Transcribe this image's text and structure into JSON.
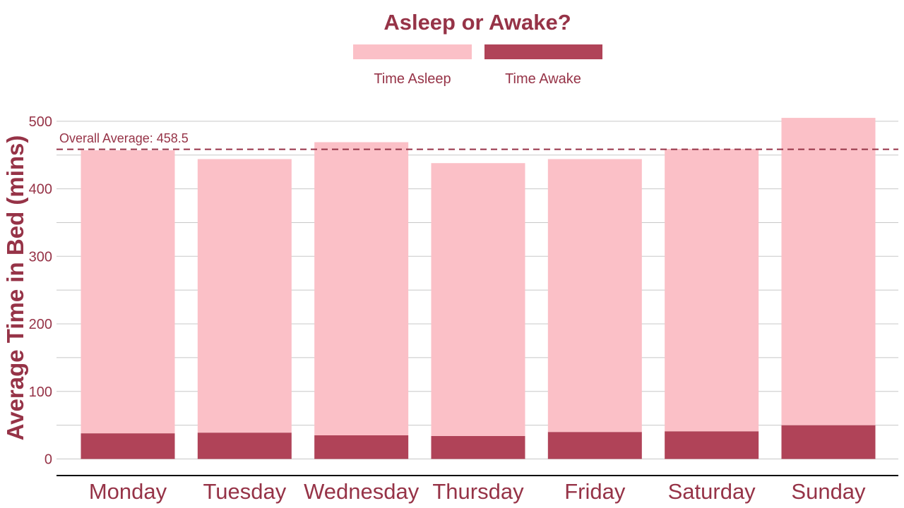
{
  "colors": {
    "asleep": "#fbc0c7",
    "awake": "#b04358",
    "text": "#963347",
    "grid": "#c8c8c8",
    "axis": "#000000",
    "average_line": "#963347"
  },
  "chart_data": {
    "type": "bar",
    "stacked": true,
    "title": "Asleep or Awake?",
    "xlabel": "",
    "ylabel": "Average Time in Bed (mins)",
    "ylim": [
      0,
      520
    ],
    "yticks": [
      0,
      100,
      200,
      300,
      400,
      500
    ],
    "ytick_labels": [
      "0",
      "100",
      "200",
      "300",
      "400",
      "500"
    ],
    "grid": true,
    "legend_position": "top-center",
    "categories": [
      "Monday",
      "Tuesday",
      "Wednesday",
      "Thursday",
      "Friday",
      "Saturday",
      "Sunday"
    ],
    "series": [
      {
        "name": "Time Awake",
        "values": [
          38,
          39,
          35,
          34,
          40,
          41,
          50
        ]
      },
      {
        "name": "Time Asleep",
        "values": [
          419,
          405,
          434,
          404,
          404,
          418,
          455
        ]
      }
    ],
    "legend_order": [
      "Time Asleep",
      "Time Awake"
    ],
    "reference_line": {
      "value": 458.5,
      "label": "Overall Average: 458.5",
      "style": "dashed"
    }
  }
}
